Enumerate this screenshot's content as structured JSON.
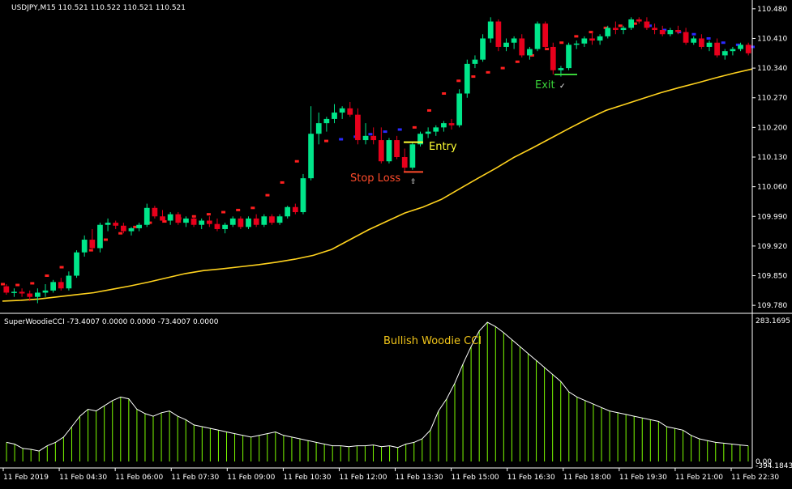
{
  "header": {
    "symbol_line": "USDJPY,M15  110.521 110.522 110.521 110.521"
  },
  "colors": {
    "bg": "#000000",
    "axis": "#ffffff",
    "bull": "#00e68a",
    "bear": "#e8001c",
    "ma": "#ffd21e",
    "trail_bull": "#ff1f1f",
    "trail_bear": "#2a2aff",
    "cci_line": "#ffffff",
    "cci_hist": "#7cfc00",
    "entry": "#ffff33",
    "stop": "#ff4b2b",
    "exit": "#39d339",
    "title": "#f0c419"
  },
  "annotations": {
    "entry": "Entry",
    "stop_loss": "Stop Loss",
    "stop_mark": "⇧",
    "exit": "Exit",
    "exit_mark": "✓",
    "indicator_title": "Bullish Woodie CCI"
  },
  "indicator": {
    "label": "SuperWoodieCCI -73.4007 0.0000 0.0000 -73.4007 0.0000"
  },
  "chart_data": [
    {
      "type": "candlestick",
      "title": "USDJPY,M15",
      "price_axis_ticks": [
        "110.480",
        "110.410",
        "110.340",
        "110.270",
        "110.200",
        "110.130",
        "110.060",
        "109.990",
        "109.920",
        "109.850",
        "109.780"
      ],
      "ylim": [
        109.765,
        110.495
      ],
      "time_axis_labels": [
        "11 Feb 2019",
        "11 Feb 04:30",
        "11 Feb 06:00",
        "11 Feb 07:30",
        "11 Feb 09:00",
        "11 Feb 10:30",
        "11 Feb 12:00",
        "11 Feb 13:30",
        "11 Feb 15:00",
        "11 Feb 16:30",
        "11 Feb 18:00",
        "11 Feb 19:30",
        "11 Feb 21:00",
        "11 Feb 22:30"
      ],
      "candles": [
        [
          109.825,
          109.83,
          109.805,
          109.81
        ],
        [
          109.81,
          109.82,
          109.8,
          109.812
        ],
        [
          109.812,
          109.82,
          109.8,
          109.808
        ],
        [
          109.808,
          109.815,
          109.79,
          109.8
        ],
        [
          109.8,
          109.82,
          109.785,
          109.81
        ],
        [
          109.81,
          109.83,
          109.8,
          109.815
        ],
        [
          109.815,
          109.84,
          109.81,
          109.835
        ],
        [
          109.835,
          109.845,
          109.815,
          109.82
        ],
        [
          109.82,
          109.86,
          109.815,
          109.85
        ],
        [
          109.85,
          109.91,
          109.845,
          109.905
        ],
        [
          109.905,
          109.945,
          109.895,
          109.935
        ],
        [
          109.935,
          109.96,
          109.91,
          109.915
        ],
        [
          109.915,
          109.975,
          109.905,
          109.97
        ],
        [
          109.97,
          109.985,
          109.955,
          109.975
        ],
        [
          109.975,
          109.98,
          109.96,
          109.968
        ],
        [
          109.968,
          109.975,
          109.95,
          109.955
        ],
        [
          109.955,
          109.965,
          109.945,
          109.962
        ],
        [
          109.962,
          109.975,
          109.955,
          109.97
        ],
        [
          109.97,
          110.02,
          109.965,
          110.01
        ],
        [
          110.01,
          110.015,
          109.985,
          109.99
        ],
        [
          109.99,
          110.005,
          109.975,
          109.98
        ],
        [
          109.98,
          110.0,
          109.97,
          109.995
        ],
        [
          109.995,
          110.0,
          109.97,
          109.975
        ],
        [
          109.975,
          109.99,
          109.965,
          109.985
        ],
        [
          109.985,
          109.99,
          109.965,
          109.97
        ],
        [
          109.97,
          109.985,
          109.96,
          109.98
        ],
        [
          109.98,
          109.99,
          109.965,
          109.972
        ],
        [
          109.972,
          109.985,
          109.955,
          109.96
        ],
        [
          109.96,
          109.975,
          109.95,
          109.97
        ],
        [
          109.97,
          109.99,
          109.965,
          109.985
        ],
        [
          109.985,
          109.99,
          109.96,
          109.965
        ],
        [
          109.965,
          109.99,
          109.96,
          109.985
        ],
        [
          109.985,
          109.995,
          109.965,
          109.97
        ],
        [
          109.97,
          109.995,
          109.965,
          109.99
        ],
        [
          109.99,
          109.995,
          109.97,
          109.975
        ],
        [
          109.975,
          109.995,
          109.97,
          109.99
        ],
        [
          109.99,
          110.015,
          109.985,
          110.012
        ],
        [
          110.012,
          110.02,
          109.995,
          110.0
        ],
        [
          110.0,
          110.09,
          109.995,
          110.08
        ],
        [
          110.08,
          110.25,
          110.075,
          110.185
        ],
        [
          110.185,
          110.235,
          110.16,
          110.21
        ],
        [
          110.21,
          110.225,
          110.19,
          110.22
        ],
        [
          110.22,
          110.255,
          110.21,
          110.235
        ],
        [
          110.235,
          110.25,
          110.22,
          110.245
        ],
        [
          110.245,
          110.26,
          110.225,
          110.23
        ],
        [
          110.23,
          110.245,
          110.16,
          110.17
        ],
        [
          110.17,
          110.21,
          110.16,
          110.18
        ],
        [
          110.18,
          110.2,
          110.16,
          110.17
        ],
        [
          110.17,
          110.2,
          110.115,
          110.12
        ],
        [
          110.12,
          110.175,
          110.115,
          110.17
        ],
        [
          110.17,
          110.18,
          110.125,
          110.13
        ],
        [
          110.13,
          110.15,
          110.095,
          110.105
        ],
        [
          110.105,
          110.165,
          110.1,
          110.16
        ],
        [
          110.16,
          110.19,
          110.155,
          110.185
        ],
        [
          110.185,
          110.2,
          110.175,
          110.19
        ],
        [
          110.19,
          110.205,
          110.18,
          110.2
        ],
        [
          110.2,
          110.215,
          110.19,
          110.21
        ],
        [
          110.21,
          110.22,
          110.195,
          110.205
        ],
        [
          110.205,
          110.29,
          110.2,
          110.28
        ],
        [
          110.28,
          110.36,
          110.27,
          110.35
        ],
        [
          110.35,
          110.37,
          110.34,
          110.36
        ],
        [
          110.36,
          110.42,
          110.355,
          110.41
        ],
        [
          110.41,
          110.46,
          110.4,
          110.45
        ],
        [
          110.45,
          110.455,
          110.38,
          110.39
        ],
        [
          110.39,
          110.41,
          110.38,
          110.4
        ],
        [
          110.4,
          110.415,
          110.385,
          110.41
        ],
        [
          110.41,
          110.42,
          110.365,
          110.37
        ],
        [
          110.37,
          110.39,
          110.36,
          110.385
        ],
        [
          110.385,
          110.45,
          110.38,
          110.445
        ],
        [
          110.445,
          110.45,
          110.385,
          110.39
        ],
        [
          110.39,
          110.4,
          110.325,
          110.335
        ],
        [
          110.335,
          110.345,
          110.32,
          110.34
        ],
        [
          110.34,
          110.4,
          110.335,
          110.395
        ],
        [
          110.395,
          110.405,
          110.385,
          110.398
        ],
        [
          110.398,
          110.415,
          110.39,
          110.41
        ],
        [
          110.41,
          110.425,
          110.395,
          110.405
        ],
        [
          110.405,
          110.42,
          110.395,
          110.415
        ],
        [
          110.415,
          110.44,
          110.41,
          110.435
        ],
        [
          110.435,
          110.45,
          110.42,
          110.43
        ],
        [
          110.43,
          110.44,
          110.42,
          110.435
        ],
        [
          110.435,
          110.46,
          110.43,
          110.455
        ],
        [
          110.455,
          110.46,
          110.445,
          110.45
        ],
        [
          110.45,
          110.46,
          110.43,
          110.435
        ],
        [
          110.435,
          110.445,
          110.42,
          110.43
        ],
        [
          110.43,
          110.44,
          110.415,
          110.42
        ],
        [
          110.42,
          110.435,
          110.415,
          110.43
        ],
        [
          110.43,
          110.44,
          110.42,
          110.425
        ],
        [
          110.425,
          110.435,
          110.395,
          110.4
        ],
        [
          110.4,
          110.415,
          110.395,
          110.41
        ],
        [
          110.41,
          110.42,
          110.385,
          110.39
        ],
        [
          110.39,
          110.405,
          110.38,
          110.4
        ],
        [
          110.4,
          110.41,
          110.365,
          110.37
        ],
        [
          110.37,
          110.385,
          110.36,
          110.38
        ],
        [
          110.38,
          110.39,
          110.37,
          110.385
        ],
        [
          110.385,
          110.4,
          110.38,
          110.395
        ],
        [
          110.395,
          110.4,
          110.37,
          110.375
        ]
      ],
      "moving_average": [
        109.79,
        109.792,
        109.795,
        109.8,
        109.805,
        109.81,
        109.818,
        109.826,
        109.835,
        109.845,
        109.855,
        109.862,
        109.866,
        109.871,
        109.876,
        109.882,
        109.889,
        109.898,
        109.912,
        109.935,
        109.958,
        109.978,
        109.998,
        110.012,
        110.03,
        110.055,
        110.08,
        110.104,
        110.13,
        110.152,
        110.175,
        110.198,
        110.22,
        110.24,
        110.254,
        110.268,
        110.282,
        110.294,
        110.305,
        110.317,
        110.328,
        110.338
      ],
      "trailing_stop": [
        109.83,
        109.828,
        109.832,
        109.85,
        109.87,
        109.89,
        109.91,
        109.935,
        109.95,
        109.965,
        109.975,
        109.978,
        109.985,
        109.99,
        109.995,
        110.0,
        110.005,
        110.01,
        110.04,
        110.07,
        110.12,
        110.15,
        110.168,
        110.172,
        110.178,
        110.184,
        110.19,
        110.195,
        110.2,
        110.24,
        110.28,
        110.31,
        110.32,
        110.33,
        110.34,
        110.355,
        110.37,
        110.385,
        110.4,
        110.415,
        110.425,
        110.435,
        110.44,
        110.445,
        110.44,
        110.43,
        110.425,
        110.42,
        110.41,
        110.4,
        110.395,
        110.39
      ],
      "annotation_levels": {
        "entry_price": 110.165,
        "stop_loss_price": 110.095,
        "exit_price": 110.325
      }
    },
    {
      "type": "histogram",
      "title": "SuperWoodieCCI",
      "axis_labels": [
        "283.1695",
        "0.00",
        "-394.1843"
      ],
      "values": [
        22,
        20,
        15,
        14,
        12,
        18,
        22,
        28,
        40,
        52,
        60,
        58,
        64,
        70,
        74,
        72,
        60,
        55,
        52,
        56,
        58,
        52,
        48,
        42,
        40,
        38,
        36,
        34,
        32,
        30,
        28,
        30,
        32,
        34,
        30,
        28,
        26,
        24,
        22,
        20,
        18,
        18,
        17,
        18,
        18,
        19,
        17,
        18,
        16,
        20,
        22,
        26,
        36,
        58,
        72,
        90,
        112,
        132,
        150,
        160,
        155,
        148,
        140,
        132,
        124,
        116,
        108,
        100,
        92,
        80,
        74,
        70,
        66,
        62,
        58,
        56,
        54,
        52,
        50,
        48,
        46,
        40,
        38,
        36,
        30,
        26,
        24,
        22,
        21,
        20,
        19,
        18
      ]
    }
  ]
}
